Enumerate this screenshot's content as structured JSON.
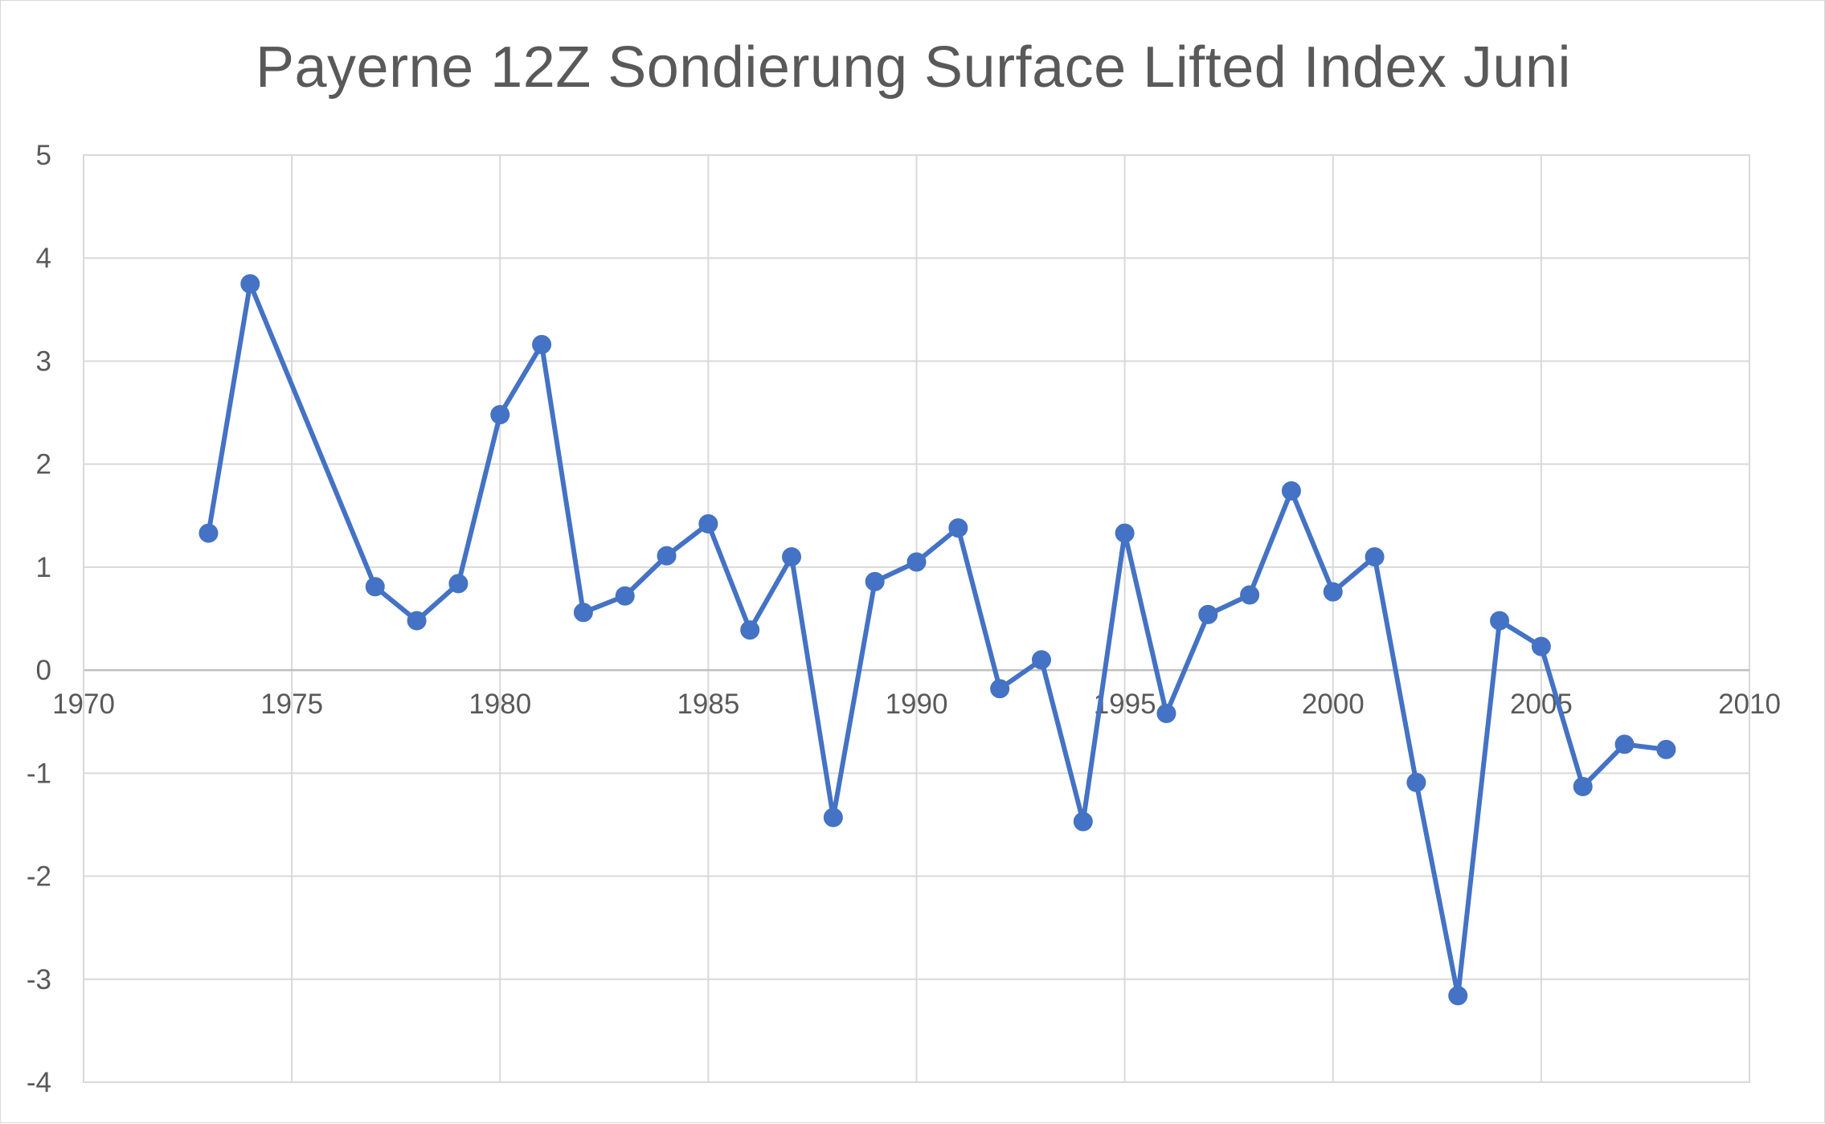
{
  "chart_data": {
    "type": "line",
    "title": "Payerne 12Z Sondierung Surface Lifted Index Juni",
    "xlabel": "",
    "ylabel": "",
    "xlim": [
      1970,
      2010
    ],
    "ylim": [
      -4,
      5
    ],
    "x_ticks": [
      1970,
      1975,
      1980,
      1985,
      1990,
      1995,
      2000,
      2005,
      2010
    ],
    "y_ticks": [
      5,
      4,
      3,
      2,
      1,
      0,
      -1,
      -2,
      -3,
      -4
    ],
    "x_tick_labels": [
      "1970",
      "1975",
      "1980",
      "1985",
      "1990",
      "1995",
      "2000",
      "2005",
      "2010"
    ],
    "y_tick_labels": [
      "5",
      "4",
      "3",
      "2",
      "1",
      "0",
      "-1",
      "-2",
      "-3",
      "-4"
    ],
    "grid": true,
    "legend": "none",
    "series": [
      {
        "name": "Surface Lifted Index Juni",
        "color": "#4472c4",
        "x": [
          1973,
          1974,
          1977,
          1978,
          1979,
          1980,
          1981,
          1982,
          1983,
          1984,
          1985,
          1986,
          1987,
          1988,
          1989,
          1990,
          1991,
          1992,
          1993,
          1994,
          1995,
          1996,
          1997,
          1998,
          1999,
          2000,
          2001,
          2002,
          2003,
          2004,
          2005,
          2006,
          2007,
          2008
        ],
        "values": [
          1.33,
          3.75,
          0.81,
          0.48,
          0.84,
          2.48,
          3.16,
          0.56,
          0.72,
          1.11,
          1.42,
          0.39,
          1.1,
          -1.43,
          0.86,
          1.05,
          1.38,
          -0.18,
          0.1,
          -1.47,
          1.33,
          -0.42,
          0.54,
          0.73,
          1.74,
          0.76,
          1.1,
          -1.09,
          -3.16,
          0.48,
          0.23,
          -1.13,
          -0.72,
          -0.77
        ]
      }
    ]
  }
}
